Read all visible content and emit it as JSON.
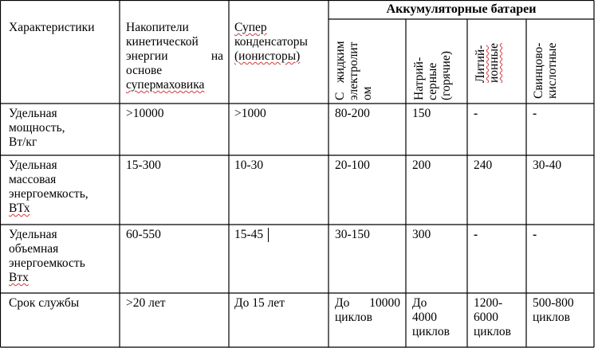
{
  "table": {
    "group_header": "Аккумуляторные батареи",
    "columns": {
      "characteristics": "Характеристики",
      "flywheel": [
        "Накопители",
        "кинетической",
        "энергии",
        "на",
        "основе",
        "супермаховика"
      ],
      "supercap": [
        "Супер",
        "конденсаторы",
        "(ионисторы)"
      ],
      "liquid": [
        "С",
        "жидким",
        "электролит",
        "ом"
      ],
      "nas": [
        "Натрий-",
        "серные",
        "(горячие)"
      ],
      "liion": [
        "Литий-",
        "ионные"
      ],
      "lead": [
        "Свинцово-",
        "кислотные"
      ]
    },
    "rows": [
      {
        "label": [
          "Удельная",
          "мощность,",
          "Вт/кг"
        ],
        "flywheel": ">10000",
        "supercap": ">1000",
        "liquid": "80-200",
        "nas": "150",
        "liion": "-",
        "lead": "-"
      },
      {
        "label": [
          "Удельная",
          "массовая",
          "энергоемкость,",
          "ВТх"
        ],
        "flywheel": "15-300",
        "supercap": "10-30",
        "liquid": "20-100",
        "nas": "200",
        "liion": "240",
        "lead": "30-40"
      },
      {
        "label": [
          "Удельная",
          "объемная",
          "энергоемкость",
          "Втх"
        ],
        "flywheel": "60-550",
        "supercap": "15-45",
        "liquid": "30-150",
        "nas": "300",
        "liion": "-",
        "lead": "-"
      },
      {
        "label": [
          "Срок службы"
        ],
        "flywheel": ">20 лет",
        "supercap": "До 15 лет",
        "liquid": [
          "До",
          "10000",
          "циклов"
        ],
        "nas": [
          "До",
          "4000",
          "циклов"
        ],
        "liion": [
          "1200-",
          "6000",
          "циклов"
        ],
        "lead": [
          "500-800",
          "циклов"
        ]
      }
    ]
  }
}
